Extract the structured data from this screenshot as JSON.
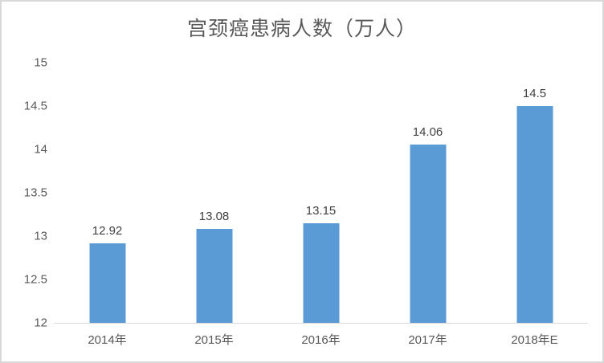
{
  "chart_data": {
    "type": "bar",
    "title": "宫颈癌患病人数（万人）",
    "categories": [
      "2014年",
      "2015年",
      "2016年",
      "2017年",
      "2018年E"
    ],
    "values": [
      12.92,
      13.08,
      13.15,
      14.06,
      14.5
    ],
    "value_labels": [
      "12.92",
      "13.08",
      "13.15",
      "14.06",
      "14.5"
    ],
    "xlabel": "",
    "ylabel": "",
    "ylim": [
      12,
      15
    ],
    "ytick_step": 0.5,
    "ytick_labels": [
      "15",
      "14.5",
      "14",
      "13.5",
      "13",
      "12.5",
      "12"
    ],
    "grid": false,
    "legend": false,
    "colors": {
      "bar": "#5b9bd5",
      "frame_border": "#d9d9d9",
      "axis_line": "#d9d9d9",
      "tick_label": "#595959",
      "data_label": "#404040",
      "title": "#595959",
      "background": "#ffffff"
    }
  }
}
